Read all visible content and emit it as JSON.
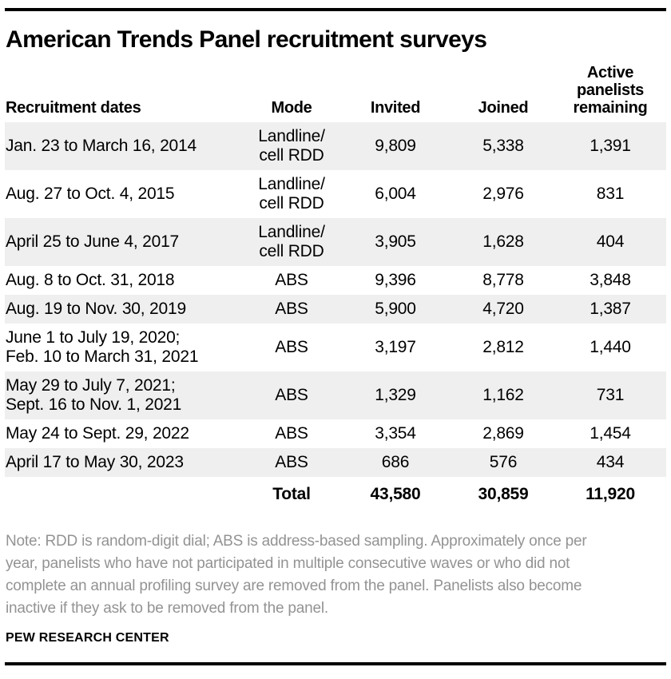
{
  "title": "American Trends Panel recruitment surveys",
  "table": {
    "headers": {
      "dates": "Recruitment dates",
      "mode": "Mode",
      "invited": "Invited",
      "joined": "Joined",
      "active": "Active\npanelists\nremaining"
    },
    "rows": [
      {
        "dates": "Jan. 23 to March 16, 2014",
        "mode": "Landline/\ncell RDD",
        "invited": "9,809",
        "joined": "5,338",
        "active": "1,391"
      },
      {
        "dates": "Aug. 27 to Oct. 4, 2015",
        "mode": "Landline/\ncell RDD",
        "invited": "6,004",
        "joined": "2,976",
        "active": "831"
      },
      {
        "dates": "April 25 to June 4, 2017",
        "mode": "Landline/\ncell RDD",
        "invited": "3,905",
        "joined": "1,628",
        "active": "404"
      },
      {
        "dates": "Aug. 8 to Oct. 31, 2018",
        "mode": "ABS",
        "invited": "9,396",
        "joined": "8,778",
        "active": "3,848"
      },
      {
        "dates": "Aug. 19 to Nov. 30, 2019",
        "mode": "ABS",
        "invited": "5,900",
        "joined": "4,720",
        "active": "1,387"
      },
      {
        "dates": "June 1 to July 19, 2020;\nFeb. 10 to March 31, 2021",
        "mode": "ABS",
        "invited": "3,197",
        "joined": "2,812",
        "active": "1,440"
      },
      {
        "dates": "May 29 to July 7, 2021;\nSept. 16 to Nov. 1, 2021",
        "mode": "ABS",
        "invited": "1,329",
        "joined": "1,162",
        "active": "731"
      },
      {
        "dates": "May 24 to Sept. 29, 2022",
        "mode": "ABS",
        "invited": "3,354",
        "joined": "2,869",
        "active": "1,454"
      },
      {
        "dates": "April 17 to May 30, 2023",
        "mode": "ABS",
        "invited": "686",
        "joined": "576",
        "active": "434"
      }
    ],
    "total": {
      "label": "Total",
      "invited": "43,580",
      "joined": "30,859",
      "active": "11,920"
    }
  },
  "note": "Note: RDD is random-digit dial; ABS is address-based sampling. Approximately once per\nyear, panelists who have not participated in multiple consecutive waves or who did not\ncomplete an annual profiling survey are removed from the panel. Panelists also become\ninactive if they ask to be removed from the panel.",
  "footer": "PEW RESEARCH CENTER",
  "colors": {
    "stripe": "#efefef",
    "text": "#000000",
    "note_text": "#939393",
    "rule": "#000000",
    "background": "#ffffff"
  },
  "chart_data": {
    "type": "table",
    "title": "American Trends Panel recruitment surveys",
    "columns": [
      "Recruitment dates",
      "Mode",
      "Invited",
      "Joined",
      "Active panelists remaining"
    ],
    "rows": [
      [
        "Jan. 23 to March 16, 2014",
        "Landline/cell RDD",
        9809,
        5338,
        1391
      ],
      [
        "Aug. 27 to Oct. 4, 2015",
        "Landline/cell RDD",
        6004,
        2976,
        831
      ],
      [
        "April 25 to June 4, 2017",
        "Landline/cell RDD",
        3905,
        1628,
        404
      ],
      [
        "Aug. 8 to Oct. 31, 2018",
        "ABS",
        9396,
        8778,
        3848
      ],
      [
        "Aug. 19 to Nov. 30, 2019",
        "ABS",
        5900,
        4720,
        1387
      ],
      [
        "June 1 to July 19, 2020; Feb. 10 to March 31, 2021",
        "ABS",
        3197,
        2812,
        1440
      ],
      [
        "May 29 to July 7, 2021; Sept. 16 to Nov. 1, 2021",
        "ABS",
        1329,
        1162,
        731
      ],
      [
        "May 24 to Sept. 29, 2022",
        "ABS",
        3354,
        2869,
        1454
      ],
      [
        "April 17 to May 30, 2023",
        "ABS",
        686,
        576,
        434
      ]
    ],
    "totals": {
      "invited": 43580,
      "joined": 30859,
      "active_panelists_remaining": 11920
    },
    "layout": {
      "striped_rows": "odd",
      "total_row_bold": true,
      "top_bottom_black_rules": true
    }
  }
}
